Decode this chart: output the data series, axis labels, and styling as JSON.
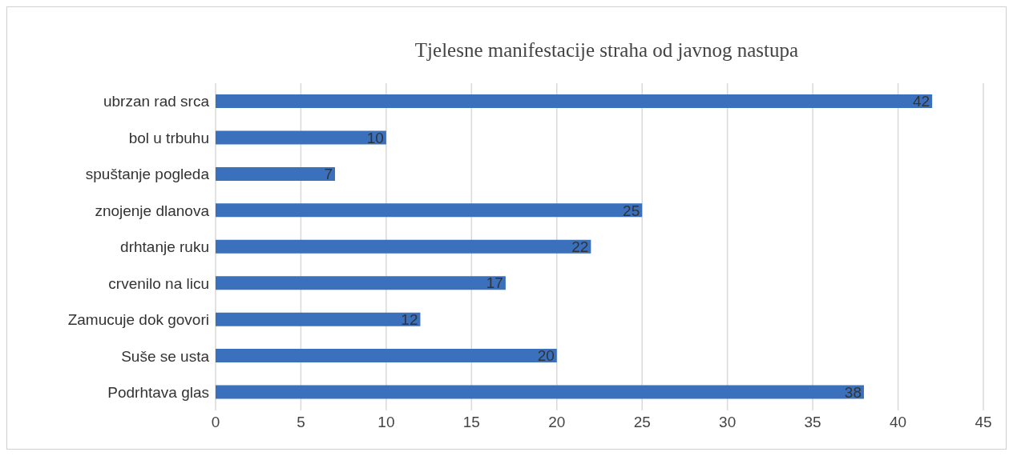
{
  "chart_data": {
    "type": "bar",
    "orientation": "horizontal",
    "title": "Tjelesne manifestacije straha od javnog nastupa",
    "categories": [
      "ubrzan rad srca",
      "bol u trbuhu",
      "spuštanje pogleda",
      "znojenje dlanova",
      "drhtanje ruku",
      "crvenilo na licu",
      "Zamucuje dok govori",
      "Suše se usta",
      "Podrhtava glas"
    ],
    "values": [
      42,
      10,
      7,
      25,
      22,
      17,
      12,
      20,
      38
    ],
    "color": "#3a70bc",
    "xlim": [
      0,
      45
    ],
    "xticks": [
      0,
      5,
      10,
      15,
      20,
      25,
      30,
      35,
      40,
      45
    ],
    "grid": "x",
    "data_labels": true
  }
}
